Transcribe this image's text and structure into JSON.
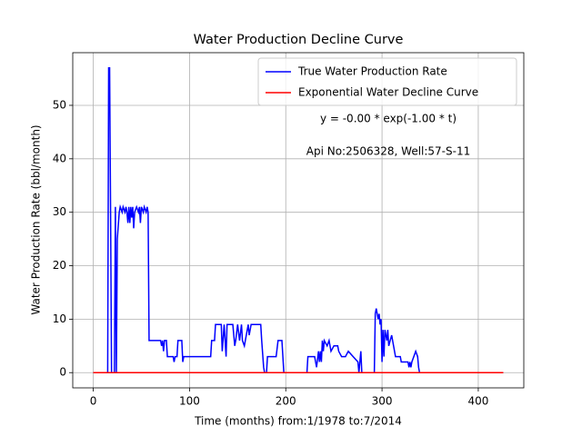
{
  "chart_data": {
    "type": "line",
    "title": "Water Production Decline Curve",
    "xlabel": "Time (months) from:1/1978 to:7/2014",
    "ylabel": "Water Production Rate (bbl/month)",
    "annotations": [
      "y = -0.00 * exp(-1.00 * t)",
      "Api No:2506328, Well:57-S-11"
    ],
    "xlim": [
      -21.3,
      447.3
    ],
    "ylim": [
      -2.85,
      59.85
    ],
    "xticks": [
      0,
      100,
      200,
      300,
      400
    ],
    "yticks": [
      0,
      10,
      20,
      30,
      40,
      50
    ],
    "grid": true,
    "legend": "upper right",
    "series": [
      {
        "name": "True Water Production Rate",
        "color": "#0000ff",
        "x": [
          0,
          15,
          16,
          17,
          18,
          19,
          22,
          23,
          24,
          25,
          27,
          28,
          30,
          31,
          33,
          34,
          35,
          36,
          37,
          38,
          39,
          40,
          41,
          42,
          43,
          45,
          47,
          48,
          49,
          50,
          52,
          53,
          55,
          56,
          57,
          58,
          70,
          71,
          72,
          73,
          74,
          76,
          77,
          80,
          83,
          84,
          85,
          87,
          88,
          92,
          93,
          94,
          122,
          123,
          126,
          127,
          133,
          134,
          136,
          138,
          139,
          145,
          146,
          147,
          148,
          150,
          152,
          154,
          155,
          157,
          161,
          162,
          164,
          174,
          175,
          177,
          178,
          180,
          181,
          190,
          192,
          196,
          198,
          222,
          223,
          230,
          232,
          234,
          235,
          236,
          237,
          238,
          239,
          240,
          243,
          245,
          247,
          250,
          254,
          255,
          258,
          262,
          265,
          270,
          275,
          276,
          278,
          279,
          292,
          293,
          294,
          296,
          297,
          298,
          299,
          300,
          301,
          302,
          303,
          305,
          306,
          307,
          310,
          314,
          319,
          320,
          327,
          328,
          329,
          330,
          331,
          333,
          335,
          337,
          338,
          339,
          426
        ],
        "values": [
          0,
          0,
          57,
          57,
          30,
          0,
          0,
          31,
          0,
          25,
          30,
          31,
          30,
          31,
          30,
          31,
          30,
          28,
          31,
          28,
          31,
          29,
          31,
          27,
          30,
          31,
          30,
          31,
          28,
          31,
          30,
          31,
          30,
          31,
          30,
          6,
          6,
          5,
          6,
          4,
          6,
          6,
          3,
          3,
          3,
          2,
          3,
          3,
          6,
          6,
          2,
          3,
          3,
          6,
          6,
          9,
          9,
          4,
          9,
          3,
          9,
          9,
          7,
          5,
          6,
          9,
          6,
          9,
          6,
          5,
          9,
          7,
          9,
          9,
          6,
          1,
          0,
          0,
          3,
          3,
          6,
          6,
          0,
          0,
          3,
          3,
          1,
          4,
          2,
          4,
          2,
          6,
          4,
          6,
          5,
          6,
          4,
          5,
          5,
          4,
          3,
          3,
          4,
          3,
          2,
          0,
          4,
          0,
          0,
          11,
          12,
          10,
          11,
          9,
          10,
          2,
          8,
          3,
          8,
          6,
          8,
          5,
          7,
          3,
          3,
          2,
          2,
          1,
          2,
          1,
          2,
          3,
          4,
          3,
          1,
          0,
          0
        ]
      },
      {
        "name": "Exponential Water Decline Curve",
        "color": "#ff0000",
        "x": [
          0,
          426
        ],
        "values": [
          0,
          0
        ]
      }
    ]
  }
}
